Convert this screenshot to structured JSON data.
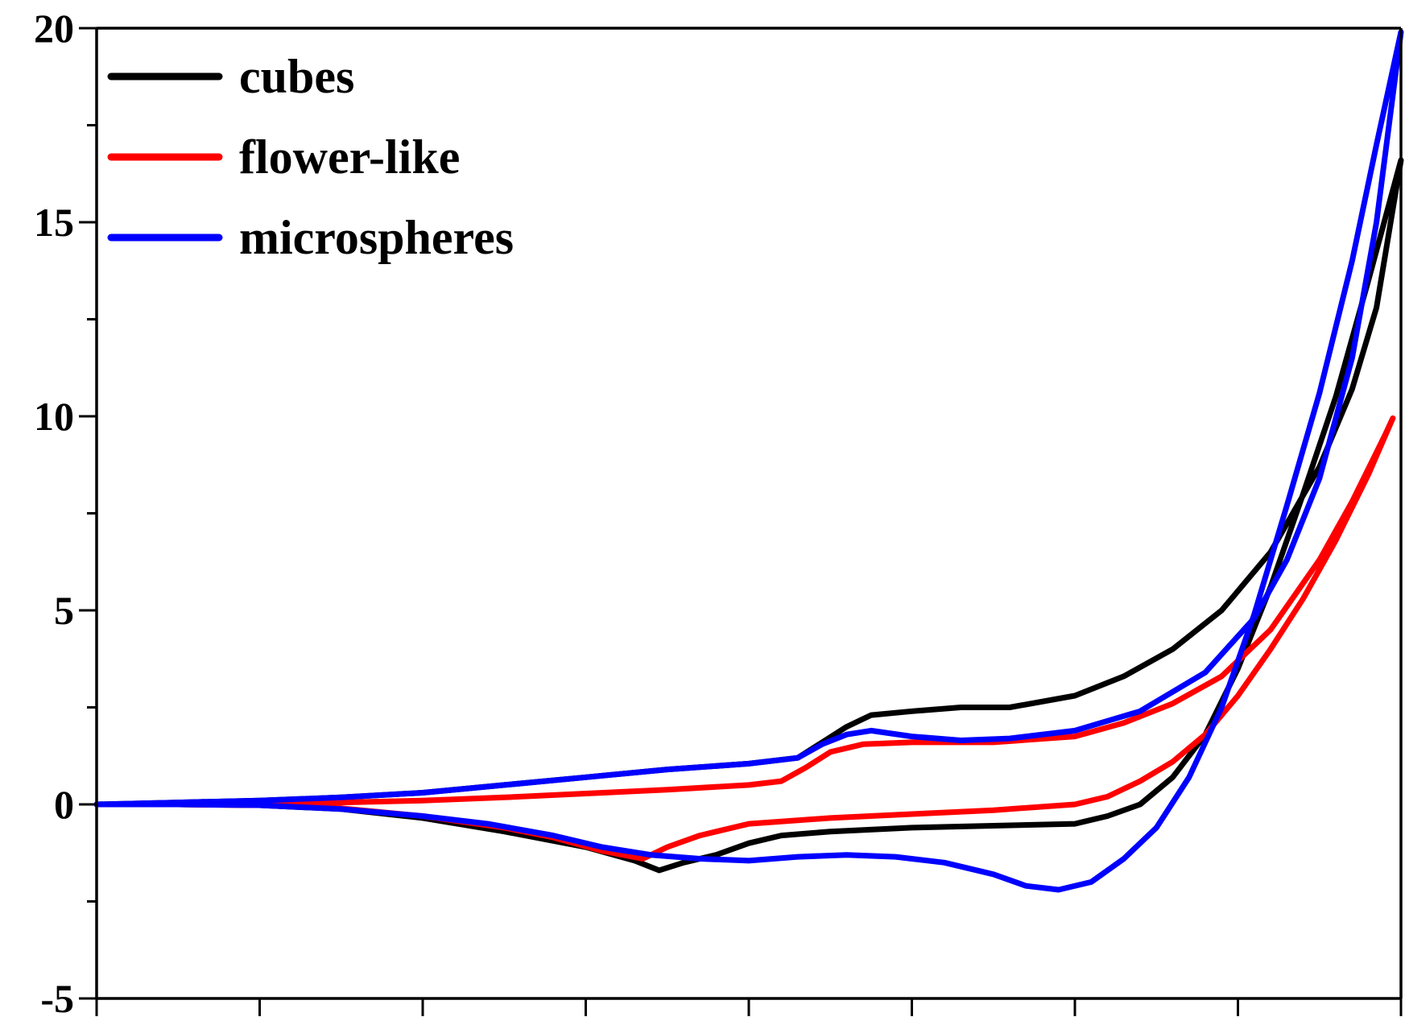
{
  "chart_data": {
    "type": "line",
    "title": "",
    "xlabel": "",
    "ylabel": "",
    "xlim": [
      0,
      8
    ],
    "ylim": [
      -5,
      20
    ],
    "y_ticks": [
      "-5",
      "0",
      "5",
      "10",
      "15",
      "20"
    ],
    "x_tick_count": 9,
    "grid": false,
    "legend": "top-left",
    "series": [
      {
        "name": "cubes",
        "color": "#000000",
        "forward": [
          [
            0,
            0
          ],
          [
            0.5,
            0.05
          ],
          [
            1,
            0.1
          ],
          [
            1.5,
            0.18
          ],
          [
            2,
            0.3
          ],
          [
            2.5,
            0.5
          ],
          [
            3,
            0.7
          ],
          [
            3.5,
            0.9
          ],
          [
            4,
            1.05
          ],
          [
            4.3,
            1.2
          ],
          [
            4.45,
            1.6
          ],
          [
            4.6,
            2.0
          ],
          [
            4.75,
            2.3
          ],
          [
            5,
            2.4
          ],
          [
            5.3,
            2.5
          ],
          [
            5.6,
            2.5
          ],
          [
            6,
            2.8
          ],
          [
            6.3,
            3.3
          ],
          [
            6.6,
            4.0
          ],
          [
            6.9,
            5.0
          ],
          [
            7.2,
            6.5
          ],
          [
            7.5,
            8.7
          ],
          [
            7.7,
            10.7
          ],
          [
            7.85,
            12.8
          ],
          [
            8,
            16.6
          ]
        ],
        "reverse": [
          [
            8,
            16.6
          ],
          [
            7.8,
            13.5
          ],
          [
            7.6,
            10.5
          ],
          [
            7.4,
            8.0
          ],
          [
            7.2,
            5.6
          ],
          [
            7,
            3.5
          ],
          [
            6.8,
            1.8
          ],
          [
            6.6,
            0.7
          ],
          [
            6.4,
            0
          ],
          [
            6.2,
            -0.3
          ],
          [
            6,
            -0.5
          ],
          [
            5.5,
            -0.55
          ],
          [
            5,
            -0.6
          ],
          [
            4.5,
            -0.7
          ],
          [
            4.2,
            -0.8
          ],
          [
            4,
            -1.0
          ],
          [
            3.8,
            -1.3
          ],
          [
            3.6,
            -1.5
          ],
          [
            3.45,
            -1.7
          ],
          [
            3.3,
            -1.45
          ],
          [
            3,
            -1.1
          ],
          [
            2.5,
            -0.7
          ],
          [
            2,
            -0.35
          ],
          [
            1.5,
            -0.12
          ],
          [
            1,
            -0.02
          ],
          [
            0.5,
            0
          ],
          [
            0,
            0
          ]
        ]
      },
      {
        "name": "flower-like",
        "color": "#ff0000",
        "forward": [
          [
            0,
            0
          ],
          [
            0.5,
            0
          ],
          [
            1,
            0.02
          ],
          [
            1.5,
            0.05
          ],
          [
            2,
            0.1
          ],
          [
            2.5,
            0.18
          ],
          [
            3,
            0.28
          ],
          [
            3.5,
            0.38
          ],
          [
            4,
            0.5
          ],
          [
            4.2,
            0.6
          ],
          [
            4.35,
            0.95
          ],
          [
            4.5,
            1.35
          ],
          [
            4.7,
            1.55
          ],
          [
            5,
            1.6
          ],
          [
            5.5,
            1.6
          ],
          [
            6,
            1.75
          ],
          [
            6.3,
            2.1
          ],
          [
            6.6,
            2.6
          ],
          [
            6.9,
            3.3
          ],
          [
            7.2,
            4.5
          ],
          [
            7.5,
            6.3
          ],
          [
            7.7,
            7.8
          ],
          [
            7.9,
            9.5
          ],
          [
            7.95,
            9.95
          ]
        ],
        "reverse": [
          [
            7.95,
            9.95
          ],
          [
            7.8,
            8.5
          ],
          [
            7.6,
            6.8
          ],
          [
            7.4,
            5.3
          ],
          [
            7.2,
            4.0
          ],
          [
            7,
            2.8
          ],
          [
            6.8,
            1.8
          ],
          [
            6.6,
            1.1
          ],
          [
            6.4,
            0.6
          ],
          [
            6.2,
            0.2
          ],
          [
            6,
            0
          ],
          [
            5.5,
            -0.15
          ],
          [
            5,
            -0.25
          ],
          [
            4.5,
            -0.35
          ],
          [
            4,
            -0.5
          ],
          [
            3.7,
            -0.8
          ],
          [
            3.5,
            -1.1
          ],
          [
            3.35,
            -1.4
          ],
          [
            3.1,
            -1.2
          ],
          [
            2.8,
            -0.85
          ],
          [
            2.5,
            -0.6
          ],
          [
            2,
            -0.3
          ],
          [
            1.5,
            -0.1
          ],
          [
            1,
            -0.02
          ],
          [
            0.5,
            0
          ],
          [
            0,
            0
          ]
        ]
      },
      {
        "name": "microspheres",
        "color": "#0000ff",
        "forward": [
          [
            0,
            0
          ],
          [
            0.5,
            0.05
          ],
          [
            1,
            0.1
          ],
          [
            1.5,
            0.18
          ],
          [
            2,
            0.3
          ],
          [
            2.5,
            0.5
          ],
          [
            3,
            0.7
          ],
          [
            3.5,
            0.9
          ],
          [
            4,
            1.05
          ],
          [
            4.3,
            1.2
          ],
          [
            4.45,
            1.55
          ],
          [
            4.6,
            1.8
          ],
          [
            4.75,
            1.9
          ],
          [
            5,
            1.75
          ],
          [
            5.3,
            1.65
          ],
          [
            5.6,
            1.7
          ],
          [
            6,
            1.9
          ],
          [
            6.4,
            2.4
          ],
          [
            6.8,
            3.4
          ],
          [
            7.1,
            4.8
          ],
          [
            7.3,
            6.3
          ],
          [
            7.5,
            8.4
          ],
          [
            7.7,
            11.5
          ],
          [
            7.85,
            15.0
          ],
          [
            8,
            19.9
          ]
        ],
        "reverse": [
          [
            8,
            19.9
          ],
          [
            7.85,
            17.0
          ],
          [
            7.7,
            14.0
          ],
          [
            7.5,
            10.6
          ],
          [
            7.3,
            7.7
          ],
          [
            7.1,
            4.9
          ],
          [
            6.9,
            2.5
          ],
          [
            6.7,
            0.7
          ],
          [
            6.5,
            -0.6
          ],
          [
            6.3,
            -1.4
          ],
          [
            6.1,
            -2.0
          ],
          [
            5.9,
            -2.2
          ],
          [
            5.7,
            -2.1
          ],
          [
            5.5,
            -1.8
          ],
          [
            5.2,
            -1.5
          ],
          [
            4.9,
            -1.35
          ],
          [
            4.6,
            -1.3
          ],
          [
            4.3,
            -1.35
          ],
          [
            4,
            -1.45
          ],
          [
            3.7,
            -1.4
          ],
          [
            3.4,
            -1.3
          ],
          [
            3.1,
            -1.1
          ],
          [
            2.8,
            -0.8
          ],
          [
            2.4,
            -0.5
          ],
          [
            2,
            -0.3
          ],
          [
            1.5,
            -0.12
          ],
          [
            1,
            -0.02
          ],
          [
            0.5,
            0
          ],
          [
            0,
            0
          ]
        ]
      }
    ]
  }
}
